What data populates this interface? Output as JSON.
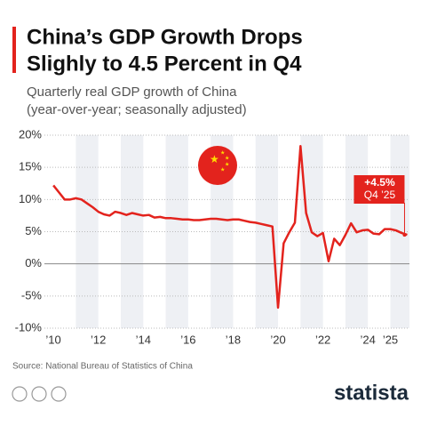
{
  "chart_data": {
    "type": "line",
    "title": [
      "China’s GDP Growth Drops",
      "Slighly to 4.5 Percent in Q4"
    ],
    "subtitle": [
      "Quarterly real GDP growth of China",
      "(year-over-year; seasonally adjusted)"
    ],
    "source": "Source: National Bureau of Statistics of China",
    "brand": "statista",
    "annotation": {
      "value": "+4.5%",
      "period": "Q4 ’25"
    },
    "x": [
      2010,
      2010.25,
      2010.5,
      2010.75,
      2011,
      2011.25,
      2011.5,
      2011.75,
      2012,
      2012.25,
      2012.5,
      2012.75,
      2013,
      2013.25,
      2013.5,
      2013.75,
      2014,
      2014.25,
      2014.5,
      2014.75,
      2015,
      2015.25,
      2015.5,
      2015.75,
      2016,
      2016.25,
      2016.5,
      2016.75,
      2017,
      2017.25,
      2017.5,
      2017.75,
      2018,
      2018.25,
      2018.5,
      2018.75,
      2019,
      2019.25,
      2019.5,
      2019.75,
      2020,
      2020.25,
      2020.5,
      2020.75,
      2021,
      2021.25,
      2021.5,
      2021.75,
      2022,
      2022.25,
      2022.5,
      2022.75,
      2023,
      2023.25,
      2023.5,
      2023.75,
      2024,
      2024.25,
      2024.5,
      2024.75,
      2025,
      2025.25,
      2025.5,
      2025.75
    ],
    "series": [
      {
        "name": "China",
        "color": "#e3231d",
        "values": [
          12.2,
          11.1,
          10.0,
          10.0,
          10.2,
          10.0,
          9.4,
          8.8,
          8.1,
          7.7,
          7.5,
          8.1,
          7.9,
          7.6,
          7.9,
          7.7,
          7.5,
          7.6,
          7.2,
          7.3,
          7.1,
          7.1,
          7.0,
          6.9,
          6.9,
          6.8,
          6.8,
          6.9,
          7.0,
          7.0,
          6.9,
          6.8,
          6.9,
          6.9,
          6.7,
          6.5,
          6.4,
          6.2,
          6.0,
          5.8,
          -6.8,
          3.2,
          4.9,
          6.4,
          18.3,
          7.9,
          4.9,
          4.3,
          4.8,
          0.4,
          3.9,
          2.9,
          4.5,
          6.3,
          4.9,
          5.2,
          5.3,
          4.7,
          4.6,
          5.4,
          5.4,
          5.2,
          4.8,
          4.5
        ]
      }
    ],
    "xlim": [
      2009.6,
      2025.85
    ],
    "xticks": [
      {
        "value": 2010,
        "label": "’10"
      },
      {
        "value": 2012,
        "label": "’12"
      },
      {
        "value": 2014,
        "label": "’14"
      },
      {
        "value": 2016,
        "label": "’16"
      },
      {
        "value": 2018,
        "label": "’18"
      },
      {
        "value": 2020,
        "label": "’20"
      },
      {
        "value": 2022,
        "label": "’22"
      },
      {
        "value": 2024,
        "label": "’24"
      },
      {
        "value": 2025,
        "label": "’25"
      }
    ],
    "ylim": [
      -10,
      20
    ],
    "yticks": [
      {
        "value": -10,
        "label": "-10%"
      },
      {
        "value": -5,
        "label": "-5%"
      },
      {
        "value": 0,
        "label": "0%"
      },
      {
        "value": 5,
        "label": "5%"
      },
      {
        "value": 10,
        "label": "10%"
      },
      {
        "value": 15,
        "label": "15%"
      },
      {
        "value": 20,
        "label": "20%"
      }
    ],
    "grid": true
  }
}
